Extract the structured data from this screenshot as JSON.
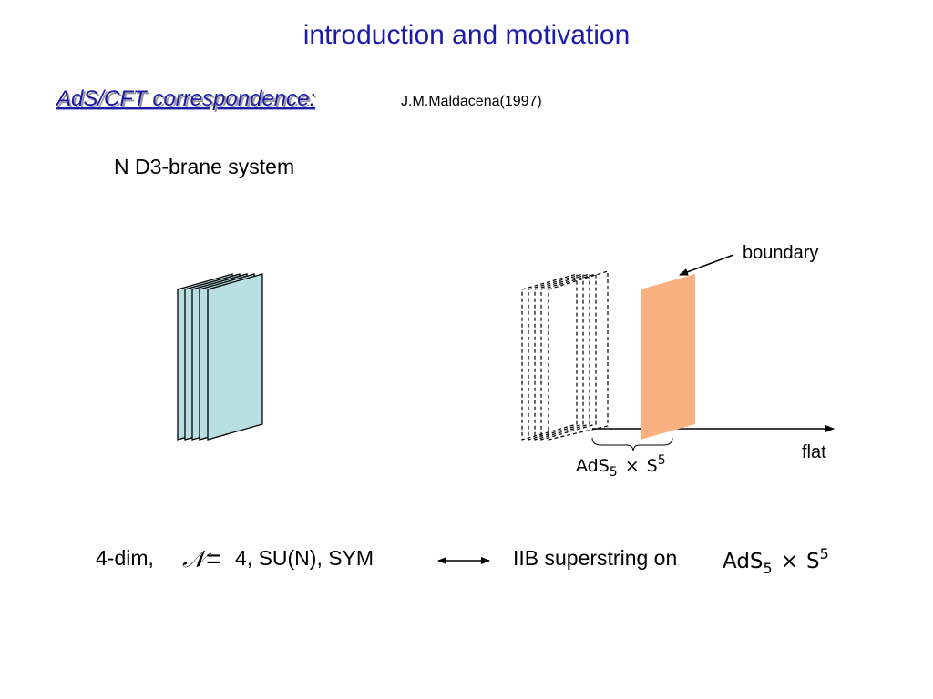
{
  "title": "introduction and motivation",
  "subtitle": "AdS/CFT correspondence:",
  "citation": "J.M.Maldacena(1997)",
  "system_label": "N D3-brane system",
  "diagram": {
    "boundary_label": "boundary",
    "flat_label": "flat",
    "space": {
      "base": "AdS",
      "sub": "5",
      "times": "×",
      "sphere": "S",
      "sup": "5"
    }
  },
  "correspondence": {
    "left": {
      "prefix": "4-dim,",
      "symbol": "𝒩",
      "equals": "=",
      "rest": "4, SU(N), SYM"
    },
    "right": {
      "prefix": "IIB superstring on",
      "space": {
        "base": "AdS",
        "sub": "5",
        "times": "×",
        "sphere": "S",
        "sup": "5"
      }
    }
  }
}
